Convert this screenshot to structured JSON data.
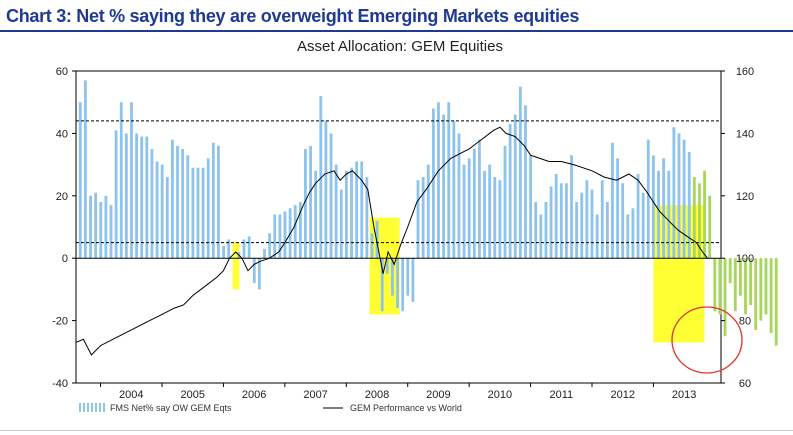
{
  "header": {
    "title": "Chart 3: Net % saying they are overweight Emerging Markets equities"
  },
  "colors": {
    "bar_positive": "#8ec3ec",
    "bar_negative": "#a6d65a",
    "line": "#000000",
    "highlight": "#ffff33",
    "circle": "#e0302a",
    "header": "#1f3a93"
  },
  "chart_data": {
    "type": "bar+line",
    "title": "Asset Allocation: GEM Equities",
    "x_tick_labels": [
      "2004",
      "2005",
      "2006",
      "2007",
      "2008",
      "2009",
      "2010",
      "2011",
      "2012",
      "2013"
    ],
    "x_tick_years": [
      2004,
      2005,
      2006,
      2007,
      2008,
      2009,
      2010,
      2011,
      2012,
      2013
    ],
    "x_range": [
      2003.6,
      2014.1
    ],
    "left_axis": {
      "ylim": [
        -40,
        60
      ],
      "ticks": [
        -40,
        -20,
        0,
        20,
        40,
        60
      ]
    },
    "right_axis": {
      "ylim": [
        60,
        160
      ],
      "ticks": [
        60,
        80,
        100,
        120,
        140,
        160
      ]
    },
    "reference_lines": [
      44,
      5
    ],
    "legend": {
      "bars": "FMS Net% say OW GEM Eqts",
      "line": "GEM Performance vs World"
    },
    "bars": {
      "name": "FMS Net% say OW GEM Eqts",
      "start": 2003.67,
      "step": 0.0833,
      "values": [
        50,
        57,
        20,
        21,
        18,
        20,
        17,
        41,
        50,
        40,
        50,
        40,
        39,
        39,
        35,
        31,
        30,
        26,
        38,
        36,
        35,
        33,
        29,
        29,
        29,
        32,
        37,
        36,
        4,
        6,
        0,
        2,
        6,
        7,
        -8,
        -10,
        3,
        8,
        14,
        14,
        15,
        16,
        17,
        18,
        35,
        36,
        28,
        52,
        44,
        40,
        30,
        22,
        28,
        29,
        31,
        31,
        26,
        8,
        12,
        -17,
        -5,
        -12,
        -16,
        -17,
        -12,
        -14,
        25,
        26,
        30,
        48,
        50,
        46,
        50,
        44,
        40,
        30,
        32,
        35,
        38,
        28,
        30,
        26,
        25,
        36,
        43,
        46,
        55,
        49,
        33,
        18,
        14,
        18,
        23,
        27,
        24,
        24,
        33,
        18,
        21,
        25,
        22,
        14,
        25,
        18,
        37,
        32,
        24,
        14,
        16,
        27,
        21,
        38,
        33,
        28,
        32,
        28,
        42,
        40,
        38,
        34,
        26,
        24,
        28,
        20,
        -17,
        -18,
        -25,
        -8,
        -17,
        -12,
        -18,
        -15,
        -23,
        -20,
        -18,
        -24,
        -28
      ],
      "negative_color_from_index": 120
    },
    "line": {
      "name": "GEM Performance vs World",
      "points": [
        [
          2003.6,
          73
        ],
        [
          2003.72,
          74
        ],
        [
          2003.85,
          69
        ],
        [
          2004.0,
          72
        ],
        [
          2004.2,
          74
        ],
        [
          2004.4,
          76
        ],
        [
          2004.6,
          78
        ],
        [
          2004.8,
          80
        ],
        [
          2005.0,
          82
        ],
        [
          2005.2,
          84
        ],
        [
          2005.35,
          85
        ],
        [
          2005.5,
          88
        ],
        [
          2005.7,
          91
        ],
        [
          2005.9,
          94
        ],
        [
          2006.0,
          96
        ],
        [
          2006.1,
          100
        ],
        [
          2006.2,
          102
        ],
        [
          2006.3,
          100
        ],
        [
          2006.4,
          96
        ],
        [
          2006.5,
          98
        ],
        [
          2006.6,
          99
        ],
        [
          2006.75,
          100
        ],
        [
          2006.9,
          102
        ],
        [
          2007.0,
          105
        ],
        [
          2007.15,
          110
        ],
        [
          2007.3,
          117
        ],
        [
          2007.4,
          121
        ],
        [
          2007.5,
          124
        ],
        [
          2007.65,
          127
        ],
        [
          2007.8,
          128
        ],
        [
          2007.9,
          125
        ],
        [
          2008.0,
          127
        ],
        [
          2008.1,
          128
        ],
        [
          2008.25,
          125
        ],
        [
          2008.35,
          122
        ],
        [
          2008.45,
          110
        ],
        [
          2008.55,
          100
        ],
        [
          2008.6,
          95
        ],
        [
          2008.68,
          102
        ],
        [
          2008.78,
          98
        ],
        [
          2008.88,
          104
        ],
        [
          2009.0,
          110
        ],
        [
          2009.15,
          118
        ],
        [
          2009.3,
          122
        ],
        [
          2009.5,
          128
        ],
        [
          2009.7,
          132
        ],
        [
          2009.9,
          134
        ],
        [
          2010.0,
          135
        ],
        [
          2010.2,
          138
        ],
        [
          2010.4,
          141
        ],
        [
          2010.5,
          142
        ],
        [
          2010.6,
          140
        ],
        [
          2010.75,
          139
        ],
        [
          2010.9,
          136
        ],
        [
          2011.0,
          133
        ],
        [
          2011.15,
          132
        ],
        [
          2011.3,
          131
        ],
        [
          2011.5,
          131
        ],
        [
          2011.7,
          130
        ],
        [
          2011.85,
          129
        ],
        [
          2012.0,
          128
        ],
        [
          2012.2,
          126
        ],
        [
          2012.4,
          125
        ],
        [
          2012.6,
          127
        ],
        [
          2012.75,
          125
        ],
        [
          2012.9,
          121
        ],
        [
          2013.0,
          118
        ],
        [
          2013.1,
          115
        ],
        [
          2013.25,
          112
        ],
        [
          2013.4,
          109
        ],
        [
          2013.55,
          107
        ],
        [
          2013.7,
          105
        ],
        [
          2013.8,
          102
        ],
        [
          2013.88,
          100
        ]
      ]
    }
  }
}
